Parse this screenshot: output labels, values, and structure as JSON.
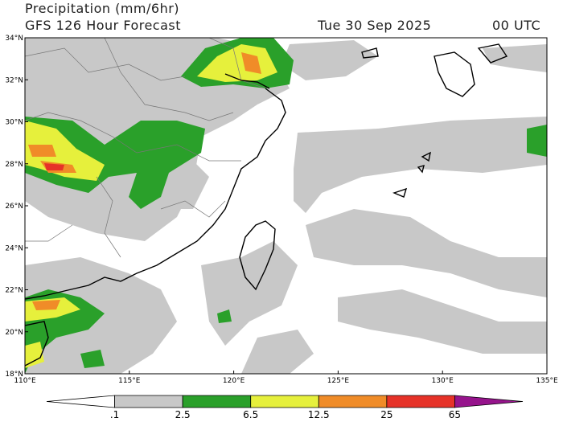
{
  "header": {
    "title": "Precipitation (mm/6hr)",
    "subtitle": "GFS 126 Hour Forecast",
    "date": "Tue 30 Sep 2025",
    "time": "00 UTC"
  },
  "map": {
    "lat_range": [
      18,
      34
    ],
    "lon_range": [
      110,
      135
    ],
    "lat_ticks": [
      {
        "value": 18,
        "label": "18°N"
      },
      {
        "value": 20,
        "label": "20°N"
      },
      {
        "value": 22,
        "label": "22°N"
      },
      {
        "value": 24,
        "label": "24°N"
      },
      {
        "value": 26,
        "label": "26°N"
      },
      {
        "value": 28,
        "label": "28°N"
      },
      {
        "value": 30,
        "label": "30°N"
      },
      {
        "value": 32,
        "label": "32°N"
      },
      {
        "value": 34,
        "label": "34°N"
      }
    ],
    "lon_ticks": [
      {
        "value": 110,
        "label": "110°E"
      },
      {
        "value": 115,
        "label": "115°E"
      },
      {
        "value": 120,
        "label": "120°E"
      },
      {
        "value": 125,
        "label": "125°E"
      },
      {
        "value": 130,
        "label": "130°E"
      },
      {
        "value": 135,
        "label": "135°E"
      }
    ]
  },
  "legend": {
    "labels": [
      ".1",
      "2.5",
      "6.5",
      "12.5",
      "25",
      "65"
    ],
    "colors": [
      "#ffffff",
      "#c8c8c8",
      "#2aa02a",
      "#e6f03c",
      "#f08c28",
      "#e63228",
      "#96148c"
    ]
  }
}
